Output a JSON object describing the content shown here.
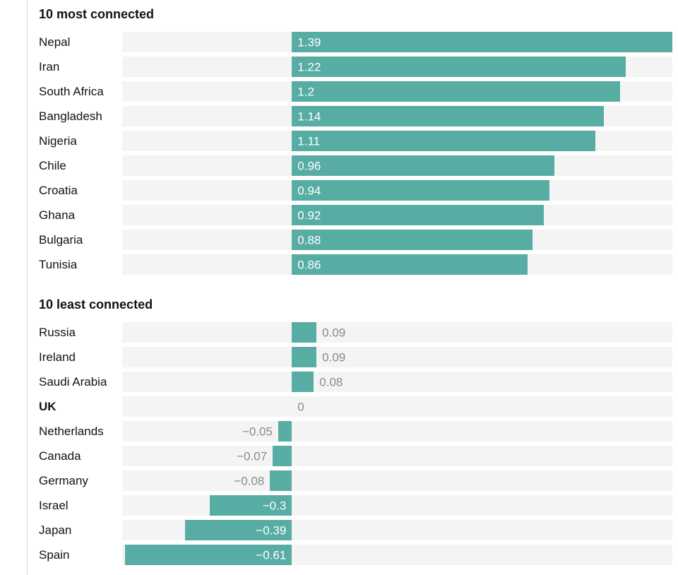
{
  "colors": {
    "bar": "#57ada3",
    "track": "#f4f4f4",
    "text": "#121212",
    "muted_value_text": "#8a8a8a",
    "inside_value_text": "#ffffff",
    "left_rule": "#dcdcdc"
  },
  "chart_data": [
    {
      "type": "bar",
      "orientation": "horizontal",
      "title": "10 most connected",
      "xlim": [
        -0.62,
        1.39
      ],
      "grid": false,
      "legend": false,
      "categories": [
        "Nepal",
        "Iran",
        "South Africa",
        "Bangladesh",
        "Nigeria",
        "Chile",
        "Croatia",
        "Ghana",
        "Bulgaria",
        "Tunisia"
      ],
      "values": [
        1.39,
        1.22,
        1.2,
        1.14,
        1.11,
        0.96,
        0.94,
        0.92,
        0.88,
        0.86
      ],
      "labels": [
        "1.39",
        "1.22",
        "1.2",
        "1.14",
        "1.11",
        "0.96",
        "0.94",
        "0.92",
        "0.88",
        "0.86"
      ],
      "bold_categories": []
    },
    {
      "type": "bar",
      "orientation": "horizontal",
      "title": "10 least connected",
      "xlim": [
        -0.62,
        1.39
      ],
      "grid": false,
      "legend": false,
      "categories": [
        "Russia",
        "Ireland",
        "Saudi Arabia",
        "UK",
        "Netherlands",
        "Canada",
        "Germany",
        "Israel",
        "Japan",
        "Spain"
      ],
      "values": [
        0.09,
        0.09,
        0.08,
        0,
        -0.05,
        -0.07,
        -0.08,
        -0.3,
        -0.39,
        -0.61
      ],
      "labels": [
        "0.09",
        "0.09",
        "0.08",
        "0",
        "−0.05",
        "−0.07",
        "−0.08",
        "−0.3",
        "−0.39",
        "−0.61"
      ],
      "bold_categories": [
        "UK"
      ]
    }
  ]
}
